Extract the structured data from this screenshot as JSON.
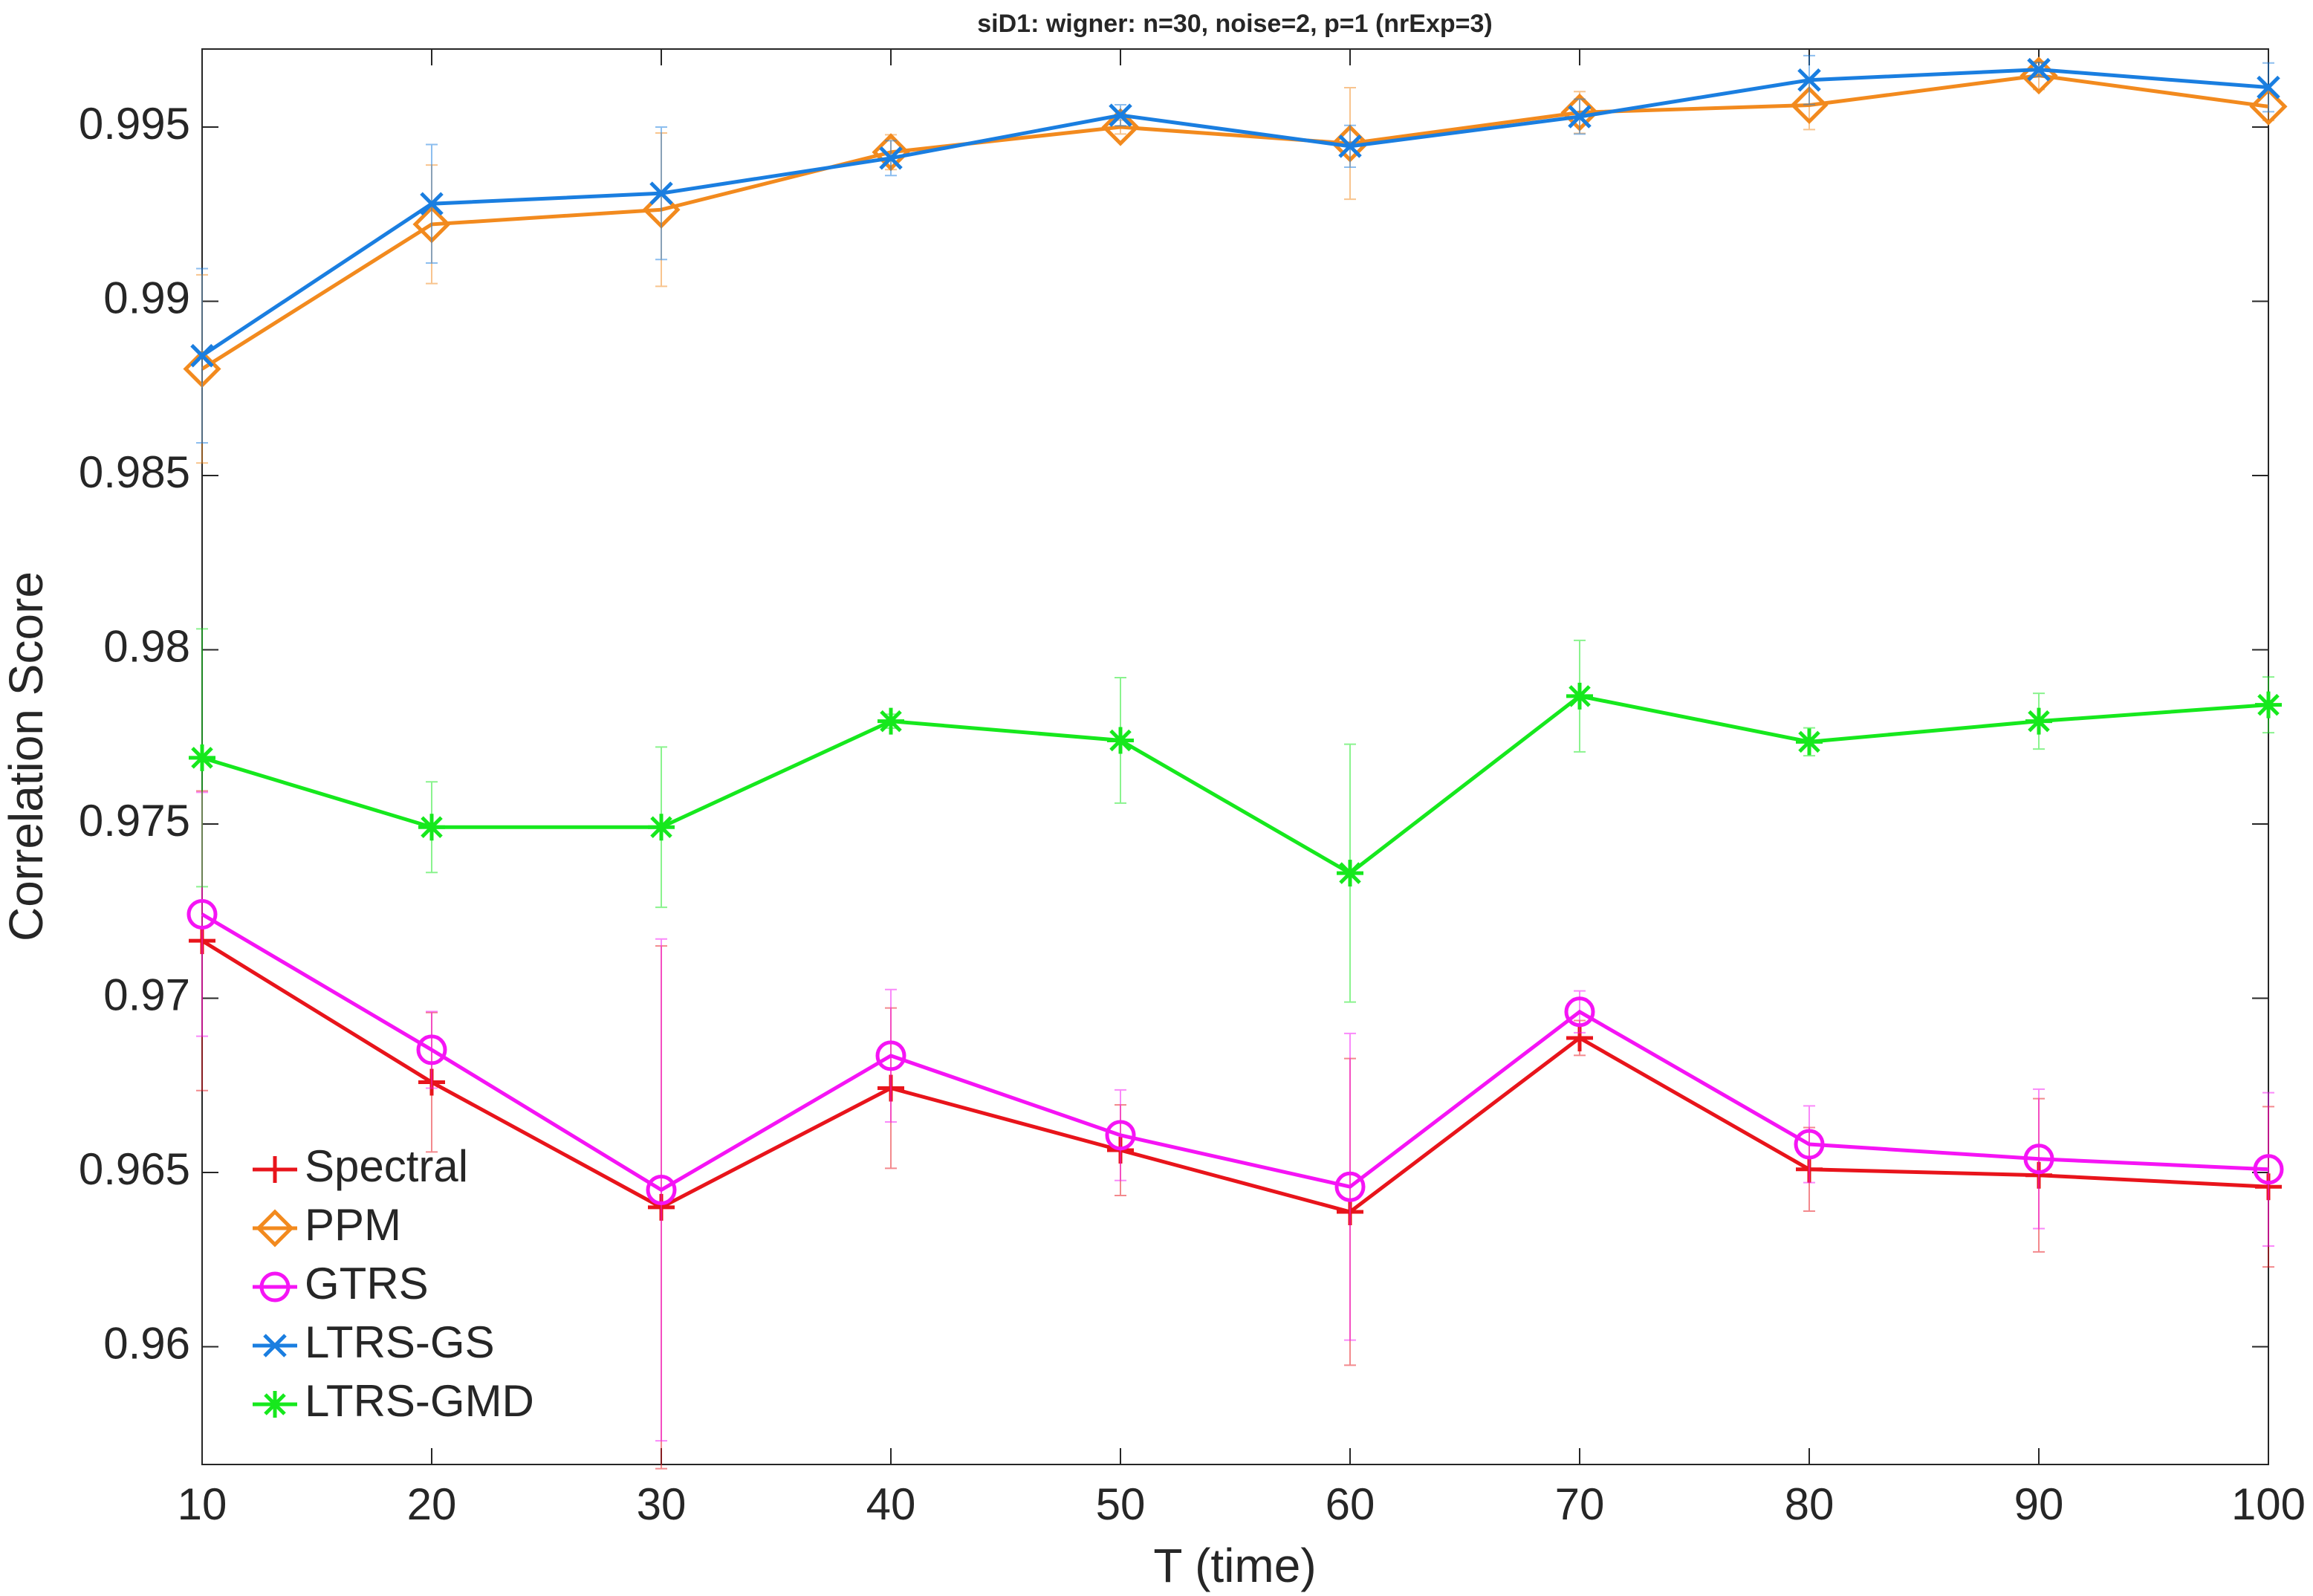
{
  "chart_data": {
    "type": "line",
    "title": "siD1: wigner: n=30, noise=2, p=1 (nrExp=3)",
    "x_label": "T (time)",
    "y_label": "Correlation Score",
    "x": [
      10,
      20,
      30,
      40,
      50,
      60,
      70,
      80,
      90,
      100
    ],
    "xlim": [
      10,
      100
    ],
    "xticks": [
      10,
      20,
      30,
      40,
      50,
      60,
      70,
      80,
      90,
      100
    ],
    "ylim": [
      0.95662,
      0.99724
    ],
    "yticks": [
      0.96,
      0.965,
      0.97,
      0.975,
      0.98,
      0.985,
      0.99,
      0.995
    ],
    "grid": false,
    "legend": "lower left",
    "series": [
      {
        "name": "Spectral",
        "color": "#e8141b",
        "marker": "plus",
        "values": [
          0.97165,
          0.96759,
          0.964,
          0.96742,
          0.96564,
          0.96387,
          0.96886,
          0.96509,
          0.96492,
          0.96459
        ],
        "errors": [
          0.0043,
          0.002,
          0.0075,
          0.0023,
          0.0013,
          0.0044,
          0.0005,
          0.0012,
          0.0022,
          0.0023
        ]
      },
      {
        "name": "PPM",
        "color": "#f28a1e",
        "marker": "diamond",
        "values": [
          0.98806,
          0.99221,
          0.99263,
          0.99428,
          0.995,
          0.99453,
          0.99542,
          0.99563,
          0.99648,
          0.99559
        ],
        "errors": [
          0.0027,
          0.0017,
          0.0022,
          0.0005,
          0.0002,
          0.0016,
          0.0006,
          0.0007,
          0.0004,
          0.0004
        ]
      },
      {
        "name": "GTRS",
        "color": "#f514f5",
        "marker": "circle",
        "values": [
          0.97241,
          0.96852,
          0.9645,
          0.96835,
          0.96607,
          0.96459,
          0.96961,
          0.96581,
          0.96539,
          0.96509
        ],
        "errors": [
          0.0035,
          0.0011,
          0.0072,
          0.0019,
          0.0013,
          0.0044,
          0.0006,
          0.0011,
          0.002,
          0.0022
        ]
      },
      {
        "name": "LTRS-GS",
        "color": "#1a7ee0",
        "marker": "x",
        "values": [
          0.98844,
          0.9928,
          0.9931,
          0.99411,
          0.99534,
          0.99445,
          0.9953,
          0.99635,
          0.99665,
          0.99614
        ],
        "errors": [
          0.0025,
          0.0017,
          0.0019,
          0.0005,
          0.0003,
          0.0006,
          0.0005,
          0.0007,
          0.0002,
          0.0007
        ]
      },
      {
        "name": "LTRS-GMD",
        "color": "#16e81d",
        "marker": "star",
        "values": [
          0.9769,
          0.97491,
          0.97491,
          0.97795,
          0.9774,
          0.97359,
          0.97867,
          0.97736,
          0.97795,
          0.97842
        ],
        "errors": [
          0.0037,
          0.0013,
          0.0023,
          0.0002,
          0.0018,
          0.0037,
          0.0016,
          0.0004,
          0.0008,
          0.0008
        ]
      }
    ]
  }
}
